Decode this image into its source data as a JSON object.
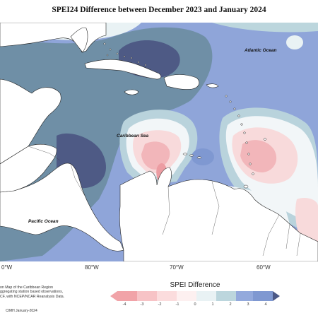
{
  "title": "SPEI24 Difference between December 2023 and January 2024",
  "map_labels": {
    "atlantic": "Atlantic Ocean",
    "caribbean": "Caribbean Sea",
    "pacific": "Pacific Ocean"
  },
  "longitude_labels": [
    "0°W",
    "80°W",
    "70°W",
    "60°W"
  ],
  "footnote_lines": [
    "on Map of the Caribbean Region",
    "ggregating station based observations,",
    "CF, with NCEP/NCAR Reanalysis Data."
  ],
  "source": "CIMH January-2024",
  "legend": {
    "title": "SPEI Difference",
    "ticks": [
      "-4",
      "-3",
      "-2",
      "-1",
      "0",
      "1",
      "2",
      "3",
      "4"
    ],
    "colors": [
      "#f1a3a8",
      "#f7c3c6",
      "#fbdcdd",
      "#fdf0f0",
      "#e9f2f4",
      "#bcd6dd",
      "#93a9dc",
      "#7f98d1",
      "#4b5886"
    ]
  },
  "fill_colors": {
    "base_blue": "#8fa5d9",
    "steel_teal": "#6f8fa6",
    "dark_blue": "#4e5a85",
    "pale_blue": "#b9d3dc",
    "lightest": "#f2f6f8",
    "pink_light": "#f8dadb",
    "pink_medium": "#f2b6ba",
    "pink_strong": "#ec9ca2",
    "land": "#ffffff"
  }
}
